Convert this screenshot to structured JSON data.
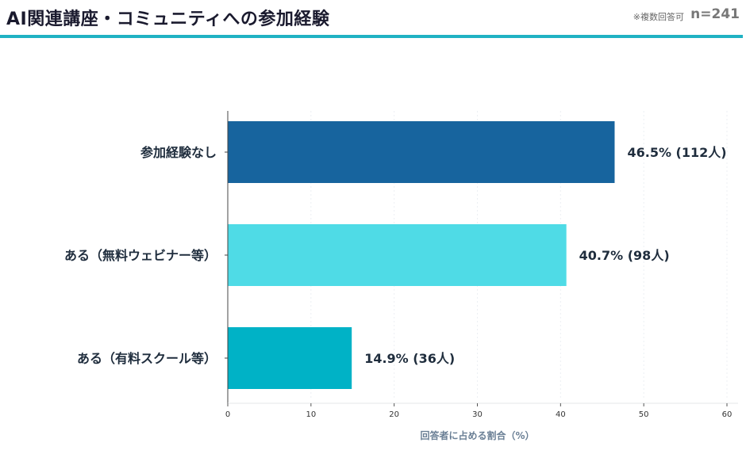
{
  "header": {
    "title": "AI関連講座・コミュニティへの参加経験",
    "note": "※複数回答可",
    "n_label": "n=241"
  },
  "colors": {
    "accent_rule": "#1fb2c3",
    "bar_1": "#17649e",
    "bar_2": "#4fdbe6",
    "bar_3": "#00b2c6"
  },
  "chart_data": {
    "type": "bar",
    "orientation": "horizontal",
    "categories": [
      "参加経験なし",
      "ある（無料ウェビナー等）",
      "ある（有料スクール等）"
    ],
    "values": [
      46.5,
      40.7,
      14.9
    ],
    "value_labels": [
      "46.5% (112人)",
      "40.7% (98人)",
      "14.9% (36人)"
    ],
    "bar_colors": [
      "#17649e",
      "#4fdbe6",
      "#00b2c6"
    ],
    "xlabel": "回答者に占める割合（%）",
    "ylabel": "",
    "xlim": [
      0,
      60
    ],
    "xticks": [
      0,
      10,
      20,
      30,
      40,
      50,
      60
    ],
    "grid": true
  }
}
